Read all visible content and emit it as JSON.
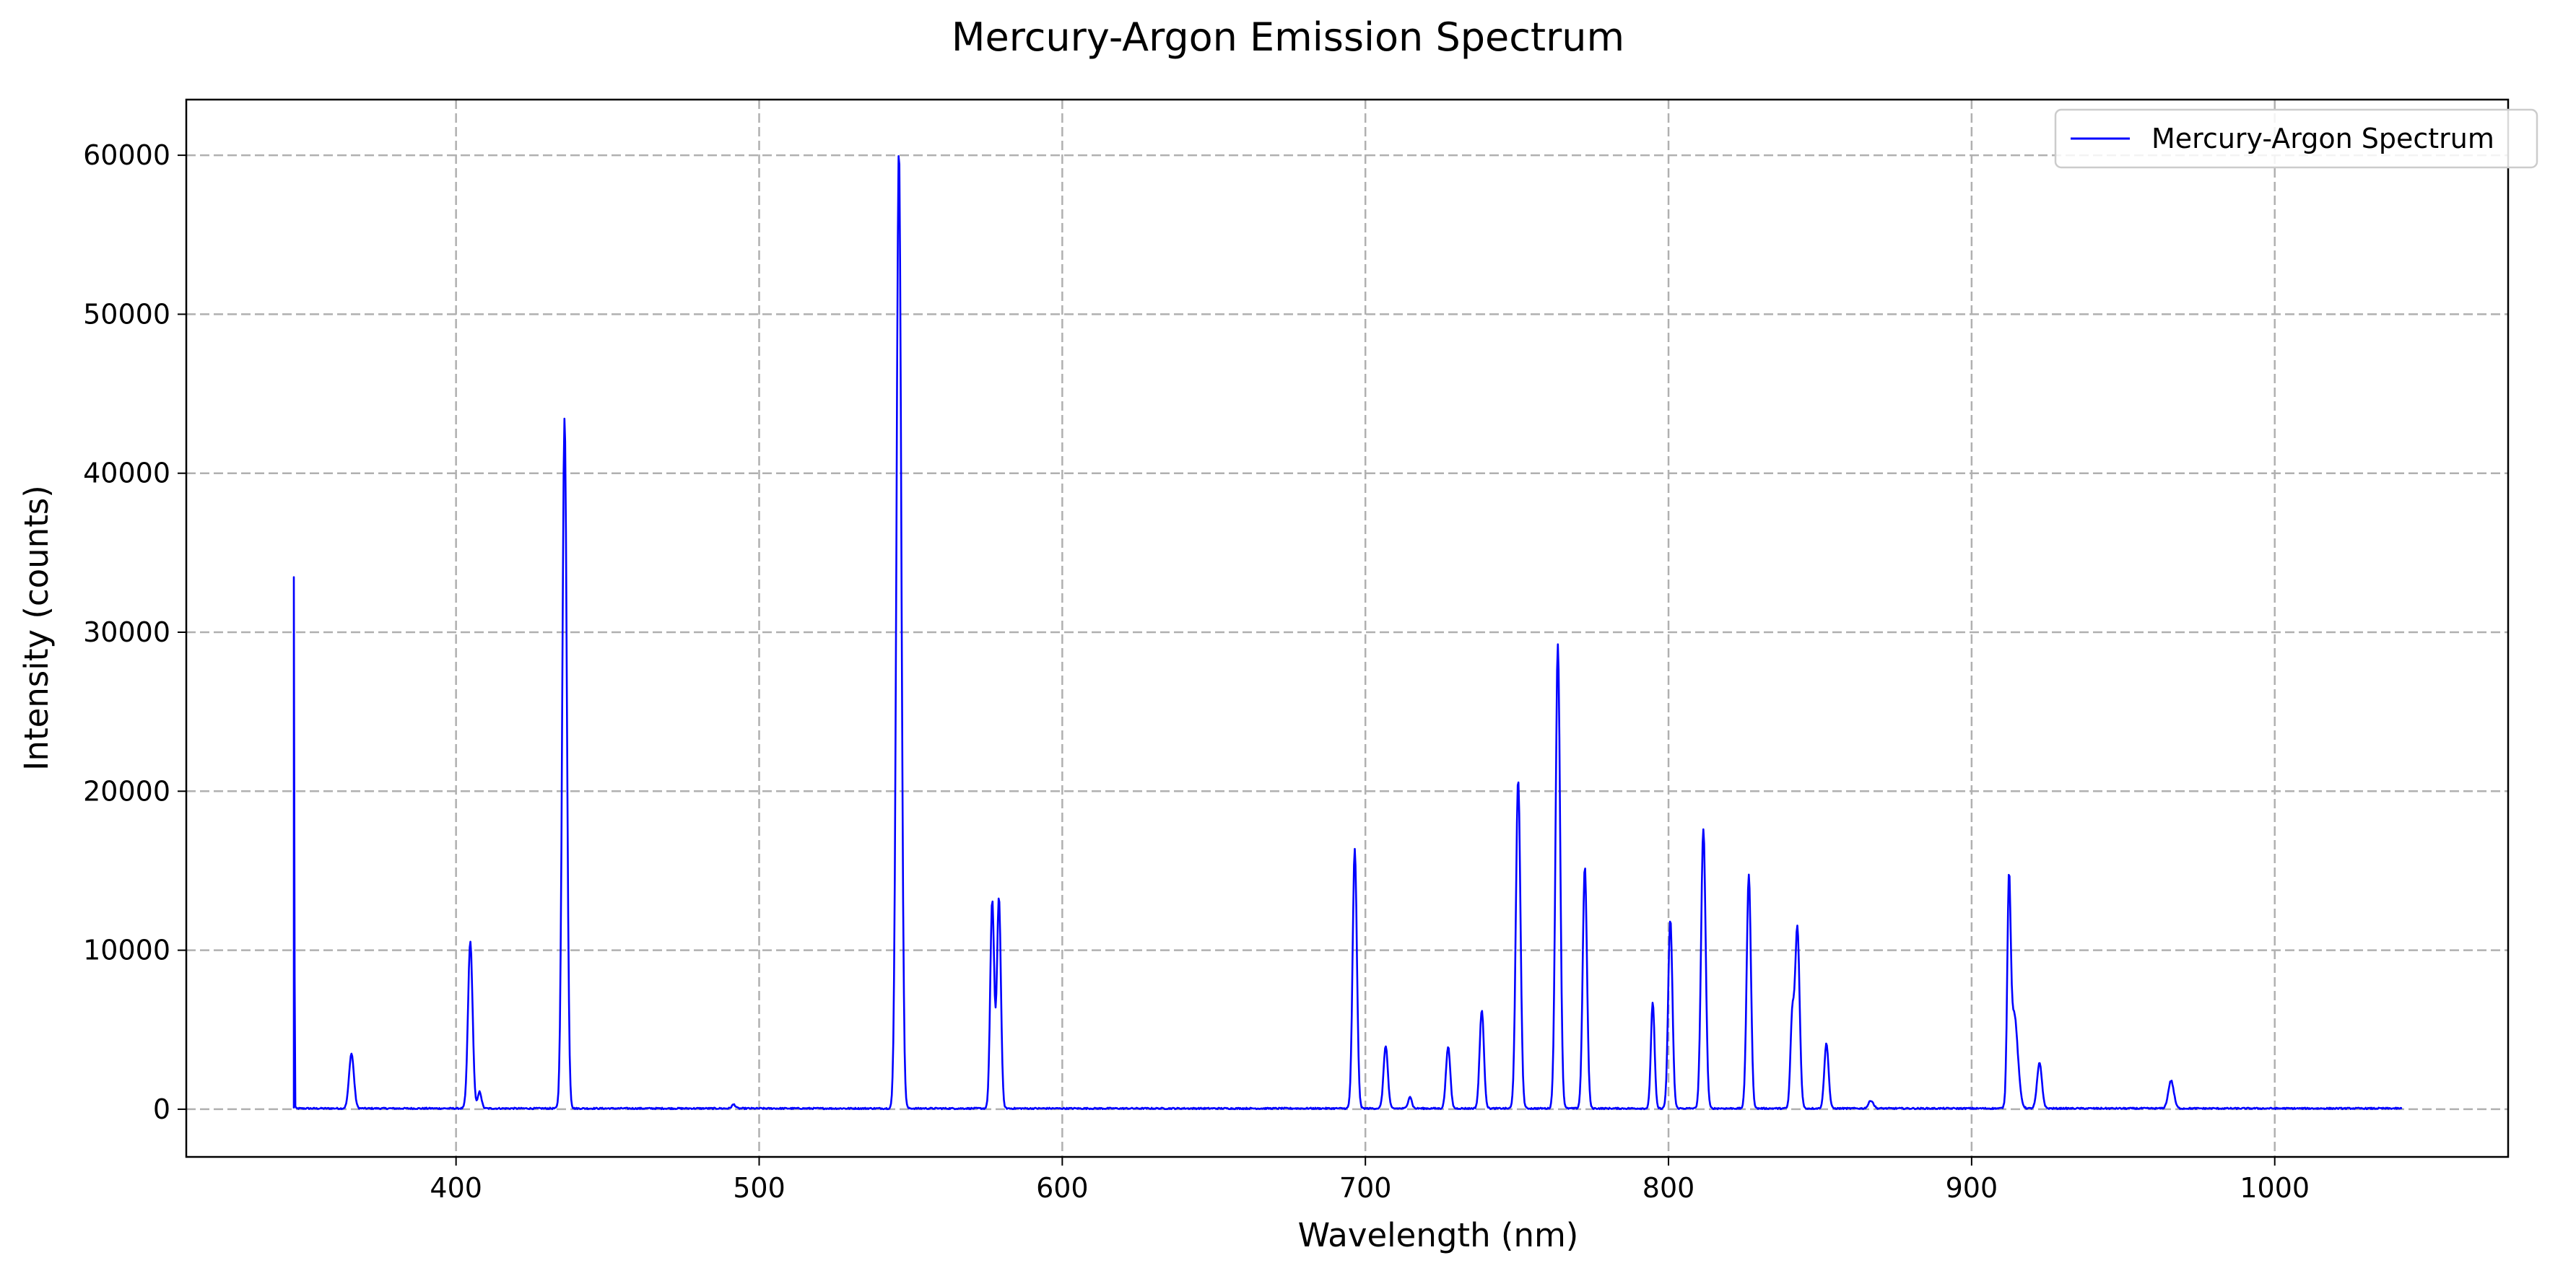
{
  "chart_data": {
    "type": "line",
    "title": "Mercury-Argon Emission Spectrum",
    "xlabel": "Wavelength (nm)",
    "ylabel": "Intensity (counts)",
    "xlim": [
      311,
      1077
    ],
    "ylim": [
      -3000,
      63500
    ],
    "xticks": [
      400,
      500,
      600,
      700,
      800,
      900,
      1000
    ],
    "yticks": [
      0,
      10000,
      20000,
      30000,
      40000,
      50000,
      60000
    ],
    "grid": true,
    "legend_position": "top-right",
    "series": [
      {
        "name": "Mercury-Argon Spectrum",
        "color": "#0000ff",
        "peaks": [
          {
            "x": 346.5,
            "y": 33400,
            "w": 0.15
          },
          {
            "x": 365.5,
            "y": 3450,
            "w": 0.8
          },
          {
            "x": 404.7,
            "y": 10500,
            "w": 0.75
          },
          {
            "x": 407.8,
            "y": 1050,
            "w": 0.6
          },
          {
            "x": 435.8,
            "y": 43500,
            "w": 0.75
          },
          {
            "x": 491.6,
            "y": 250,
            "w": 0.6
          },
          {
            "x": 546.1,
            "y": 60400,
            "w": 0.8
          },
          {
            "x": 576.9,
            "y": 13100,
            "w": 0.65
          },
          {
            "x": 579.1,
            "y": 13300,
            "w": 0.65
          },
          {
            "x": 696.5,
            "y": 16300,
            "w": 0.7
          },
          {
            "x": 706.7,
            "y": 3950,
            "w": 0.7
          },
          {
            "x": 714.7,
            "y": 750,
            "w": 0.6
          },
          {
            "x": 727.3,
            "y": 3900,
            "w": 0.7
          },
          {
            "x": 738.4,
            "y": 6200,
            "w": 0.7
          },
          {
            "x": 750.4,
            "y": 20700,
            "w": 0.75
          },
          {
            "x": 763.5,
            "y": 29200,
            "w": 0.75
          },
          {
            "x": 772.4,
            "y": 15200,
            "w": 0.7
          },
          {
            "x": 794.8,
            "y": 6700,
            "w": 0.6
          },
          {
            "x": 800.6,
            "y": 11900,
            "w": 0.7
          },
          {
            "x": 811.5,
            "y": 17600,
            "w": 0.75
          },
          {
            "x": 826.5,
            "y": 14700,
            "w": 0.7
          },
          {
            "x": 840.8,
            "y": 5500,
            "w": 0.6
          },
          {
            "x": 842.5,
            "y": 11400,
            "w": 0.75
          },
          {
            "x": 852.1,
            "y": 4100,
            "w": 0.7
          },
          {
            "x": 866.8,
            "y": 500,
            "w": 0.8
          },
          {
            "x": 912.3,
            "y": 12700,
            "w": 0.55
          },
          {
            "x": 914.0,
            "y": 6000,
            "w": 1.2
          },
          {
            "x": 922.4,
            "y": 2850,
            "w": 0.8
          },
          {
            "x": 965.8,
            "y": 1750,
            "w": 0.9
          }
        ],
        "x_start": 346.5,
        "x_end": 1042,
        "baseline": 50
      }
    ]
  }
}
